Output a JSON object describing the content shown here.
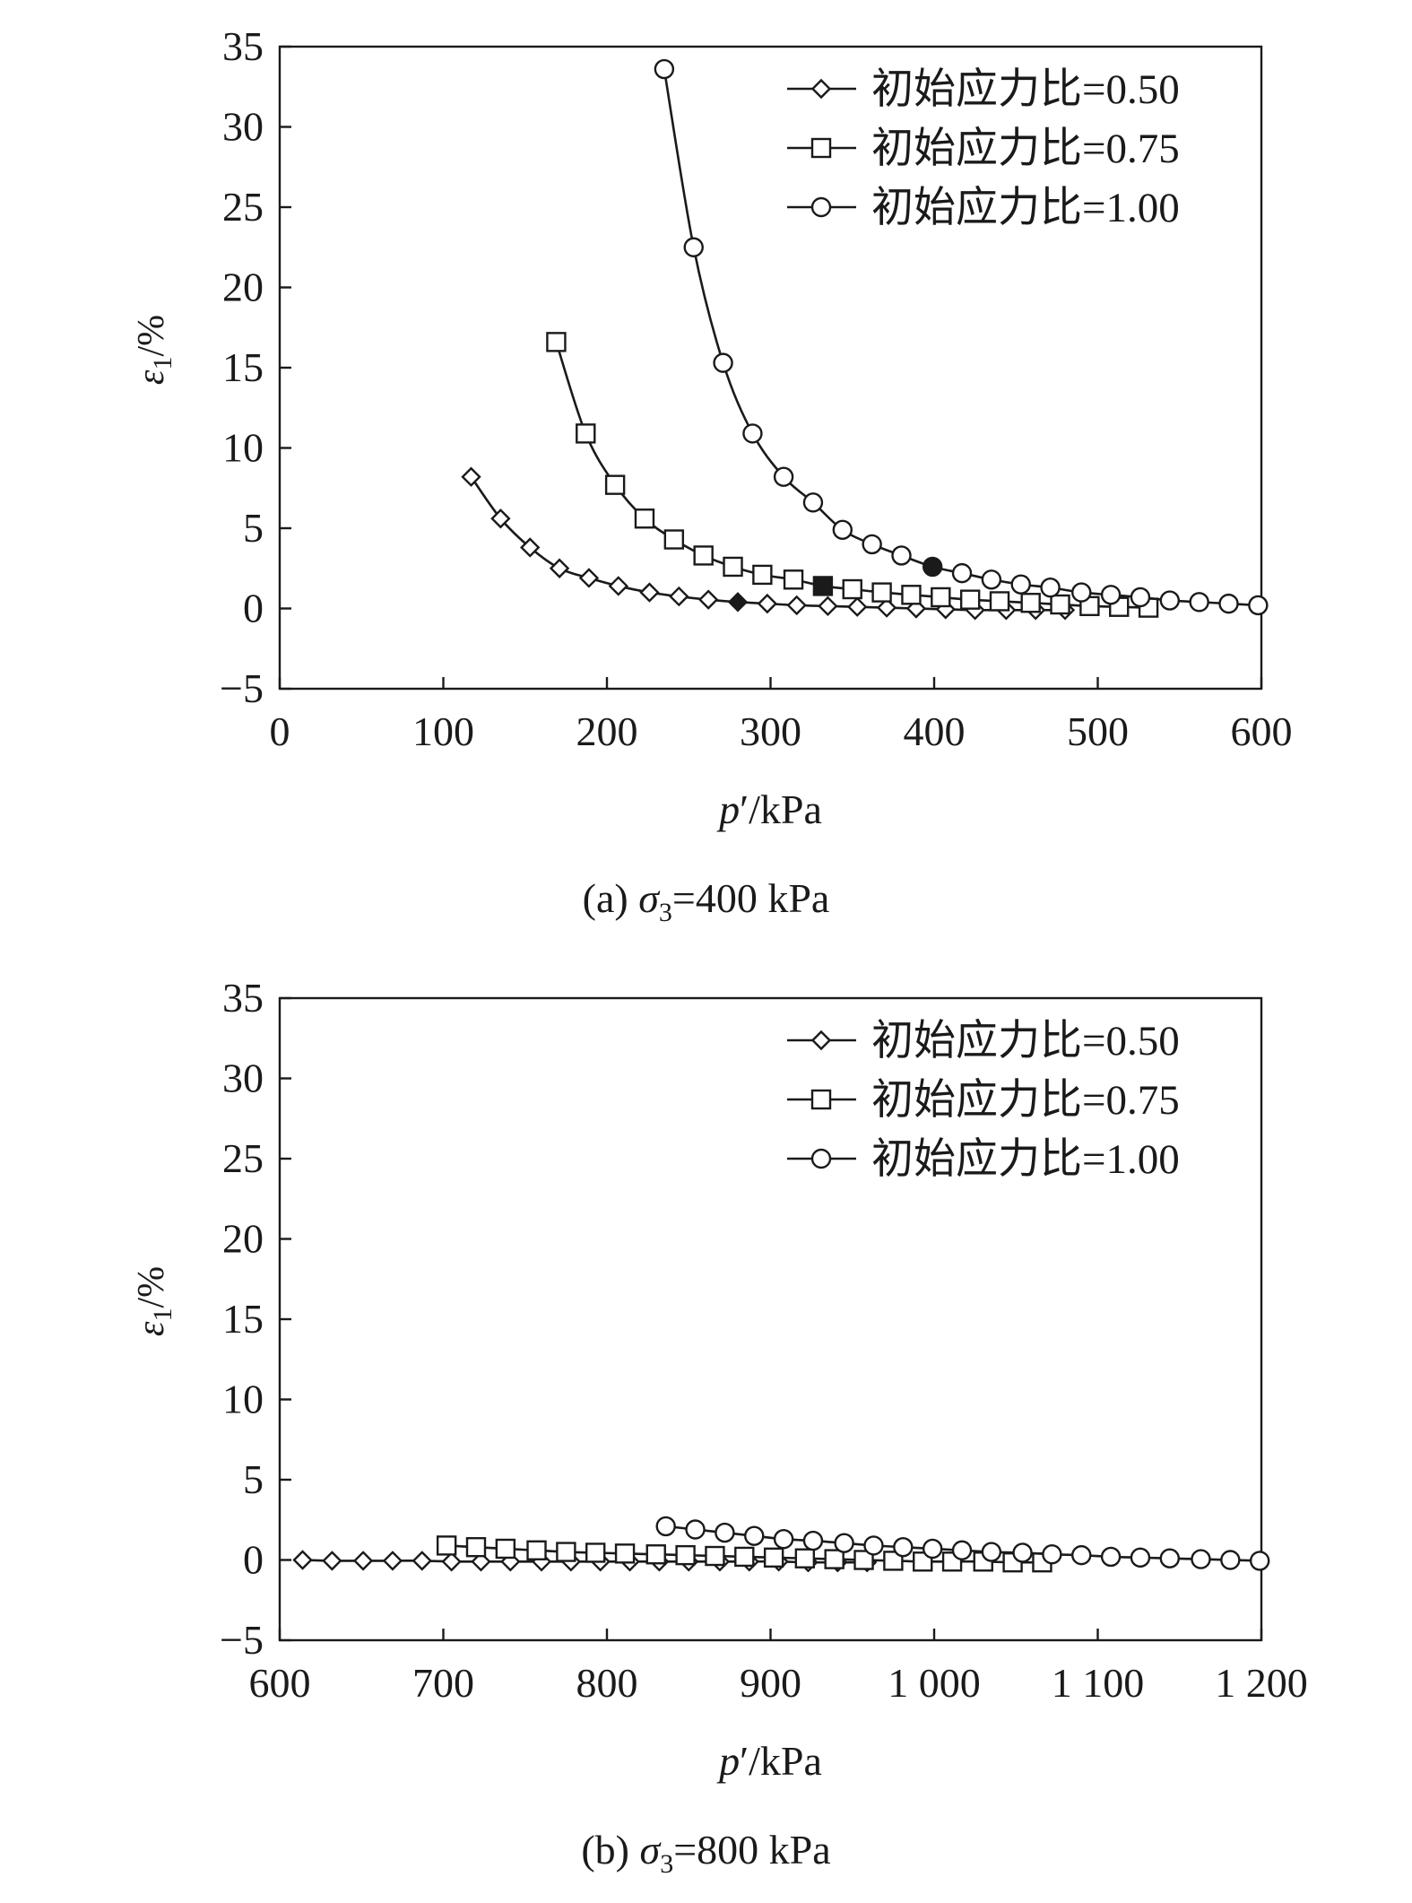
{
  "chart_data": [
    {
      "type": "scatter",
      "caption": "(a) σ3=400 kPa",
      "xlabel": "p′/kPa",
      "ylabel": "ε1/%",
      "xlim": [
        0,
        600
      ],
      "ylim": [
        -5,
        35
      ],
      "x_ticks": [
        0,
        100,
        200,
        300,
        400,
        500,
        600
      ],
      "x_tick_labels": [
        "0",
        "100",
        "200",
        "300",
        "400",
        "500",
        "600"
      ],
      "y_ticks": [
        -5,
        0,
        5,
        10,
        15,
        20,
        25,
        30,
        35
      ],
      "y_tick_labels": [
        "−5",
        "0",
        "5",
        "10",
        "15",
        "20",
        "25",
        "30",
        "35"
      ],
      "grid": false,
      "legend": "top-right",
      "series": [
        {
          "name": "初始应力比=0.50",
          "marker": "diamond",
          "x": [
            117,
            135,
            153,
            171,
            189,
            207,
            226,
            244,
            262,
            280,
            298,
            316,
            335,
            353,
            371,
            389,
            407,
            425,
            444,
            462,
            480
          ],
          "y": [
            8.2,
            5.6,
            3.8,
            2.5,
            1.9,
            1.4,
            1.0,
            0.75,
            0.55,
            0.4,
            0.3,
            0.2,
            0.15,
            0.1,
            0.05,
            0.0,
            -0.05,
            -0.1,
            -0.1,
            -0.1,
            -0.1
          ],
          "highlight_index": 9
        },
        {
          "name": "初始应力比=0.75",
          "marker": "square",
          "x": [
            169,
            187,
            205,
            223,
            241,
            259,
            277,
            295,
            314,
            332,
            350,
            368,
            386,
            404,
            422,
            440,
            459,
            477,
            495,
            513,
            531
          ],
          "y": [
            16.6,
            10.9,
            7.7,
            5.6,
            4.3,
            3.3,
            2.6,
            2.1,
            1.8,
            1.4,
            1.2,
            1.0,
            0.85,
            0.7,
            0.55,
            0.45,
            0.35,
            0.25,
            0.15,
            0.1,
            0.05
          ],
          "highlight_index": 9
        },
        {
          "name": "初始应力比=1.00",
          "marker": "circle",
          "x": [
            235,
            253,
            271,
            289,
            308,
            326,
            344,
            362,
            380,
            399,
            417,
            435,
            453,
            471,
            490,
            508,
            526,
            544,
            562,
            580,
            598
          ],
          "y": [
            33.6,
            22.5,
            15.3,
            10.9,
            8.2,
            6.6,
            4.9,
            4.0,
            3.3,
            2.6,
            2.2,
            1.8,
            1.5,
            1.3,
            1.0,
            0.85,
            0.7,
            0.5,
            0.4,
            0.3,
            0.2
          ],
          "highlight_index": 9
        }
      ]
    },
    {
      "type": "scatter",
      "caption": "(b) σ3=800 kPa",
      "xlabel": "p′/kPa",
      "ylabel": "ε1/%",
      "xlim": [
        600,
        1200
      ],
      "ylim": [
        -5,
        35
      ],
      "x_ticks": [
        600,
        700,
        800,
        900,
        1000,
        1100,
        1200
      ],
      "x_tick_labels": [
        "600",
        "700",
        "800",
        "900",
        "1 000",
        "1 100",
        "1 200"
      ],
      "y_ticks": [
        -5,
        0,
        5,
        10,
        15,
        20,
        25,
        30,
        35
      ],
      "y_tick_labels": [
        "−5",
        "0",
        "5",
        "10",
        "15",
        "20",
        "25",
        "30",
        "35"
      ],
      "grid": false,
      "legend": "top-right",
      "series": [
        {
          "name": "初始应力比=0.50",
          "marker": "diamond",
          "x": [
            614,
            632,
            651,
            669,
            687,
            705,
            723,
            741,
            760,
            778,
            796,
            814,
            832,
            850,
            869,
            887,
            905,
            923,
            941,
            959
          ],
          "y": [
            0.0,
            -0.05,
            -0.05,
            -0.05,
            -0.05,
            -0.1,
            -0.1,
            -0.1,
            -0.1,
            -0.1,
            -0.1,
            -0.1,
            -0.1,
            -0.1,
            -0.1,
            -0.1,
            -0.1,
            -0.15,
            -0.15,
            -0.15
          ]
        },
        {
          "name": "初始应力比=0.75",
          "marker": "square",
          "x": [
            702,
            720,
            738,
            757,
            775,
            793,
            811,
            830,
            848,
            866,
            884,
            902,
            921,
            939,
            957,
            975,
            993,
            1011,
            1030,
            1048,
            1066
          ],
          "y": [
            0.9,
            0.8,
            0.7,
            0.6,
            0.5,
            0.45,
            0.4,
            0.35,
            0.3,
            0.25,
            0.2,
            0.15,
            0.1,
            0.05,
            0.0,
            -0.05,
            -0.1,
            -0.1,
            -0.1,
            -0.15,
            -0.15
          ]
        },
        {
          "name": "初始应力比=1.00",
          "marker": "circle",
          "x": [
            836,
            854,
            872,
            890,
            908,
            926,
            945,
            963,
            981,
            999,
            1017,
            1035,
            1054,
            1072,
            1090,
            1108,
            1126,
            1144,
            1163,
            1181,
            1199
          ],
          "y": [
            2.1,
            1.9,
            1.7,
            1.5,
            1.3,
            1.2,
            1.05,
            0.9,
            0.8,
            0.7,
            0.6,
            0.5,
            0.45,
            0.35,
            0.3,
            0.2,
            0.15,
            0.1,
            0.05,
            0.0,
            -0.05
          ]
        }
      ]
    }
  ]
}
